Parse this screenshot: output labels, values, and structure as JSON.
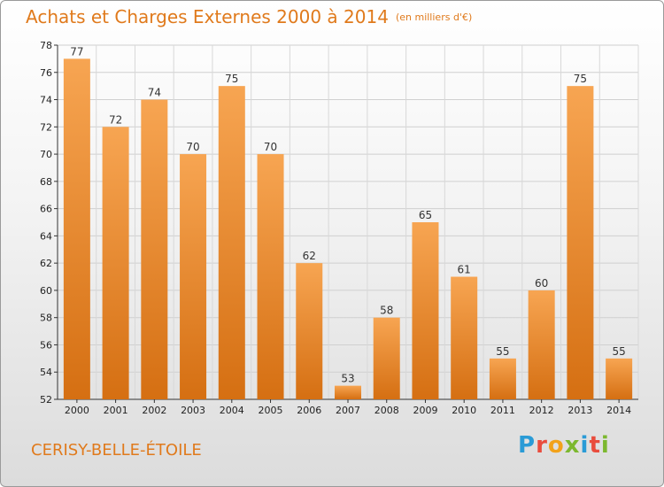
{
  "title": "Achats et Charges Externes 2000 à 2014",
  "unit": "(en milliers d'€)",
  "commune": "CERISY-BELLE-ÉTOILE",
  "logo": {
    "letters": [
      "P",
      "r",
      "o",
      "x",
      "i",
      "t",
      "i"
    ],
    "colors": [
      "#2a9bd6",
      "#e94c3d",
      "#f2a21a",
      "#7cb82f",
      "#2a9bd6",
      "#e94c3d",
      "#7cb82f"
    ]
  },
  "colors": {
    "bar_top": "#f7a552",
    "bar_bottom": "#d56f12",
    "title": "#e07a1c"
  },
  "chart_data": {
    "type": "bar",
    "categories": [
      "2000",
      "2001",
      "2002",
      "2003",
      "2004",
      "2005",
      "2006",
      "2007",
      "2008",
      "2009",
      "2010",
      "2011",
      "2012",
      "2013",
      "2014"
    ],
    "values": [
      77,
      72,
      74,
      70,
      75,
      70,
      62,
      53,
      58,
      65,
      61,
      55,
      60,
      75,
      55
    ],
    "ylim": [
      52,
      78
    ],
    "yticks": [
      52,
      54,
      56,
      58,
      60,
      62,
      64,
      66,
      68,
      70,
      72,
      74,
      76,
      78
    ],
    "grid": true,
    "xlabel": "",
    "ylabel": ""
  }
}
